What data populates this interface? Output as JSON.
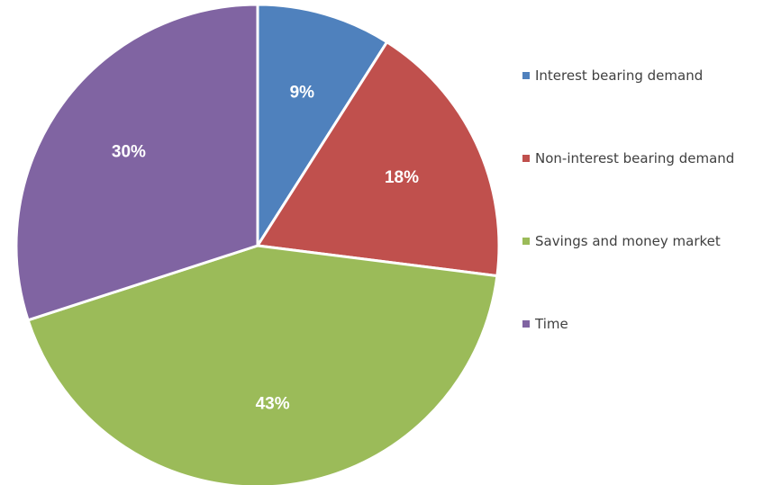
{
  "chart_data": {
    "type": "pie",
    "title": "",
    "categories": [
      "Interest bearing demand",
      "Non-interest bearing demand",
      "Savings and money market",
      "Time"
    ],
    "values": [
      9,
      18,
      43,
      30
    ],
    "labels": [
      "9%",
      "18%",
      "43%",
      "30%"
    ],
    "colors": [
      "#4f81bd",
      "#c0504d",
      "#9bbb59",
      "#8064a2"
    ],
    "start_angle": "12 o'clock",
    "direction": "clockwise",
    "legend": "right"
  }
}
